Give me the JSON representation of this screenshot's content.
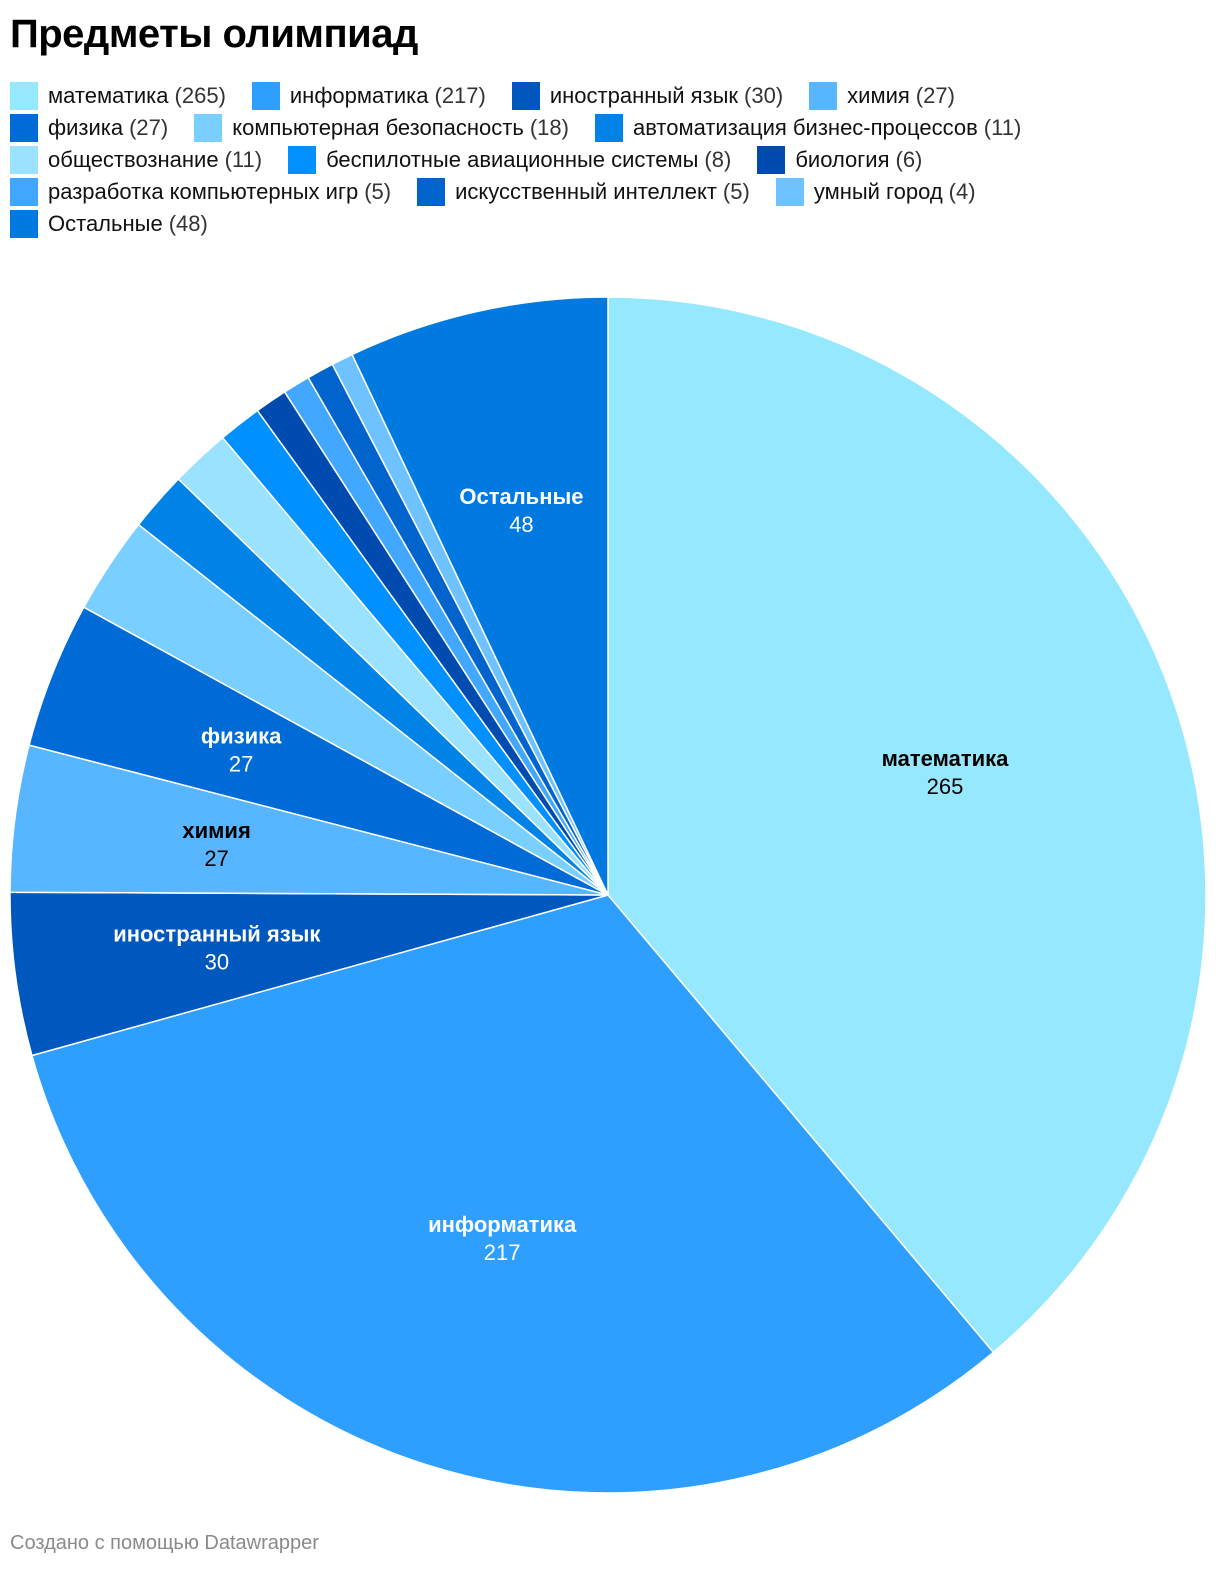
{
  "title": "Предметы олимпиад",
  "footer": "Создано с помощью Datawrapper",
  "chart_data": {
    "type": "pie",
    "title": "Предметы олимпиад",
    "legend_position": "top",
    "slices": [
      {
        "label": "математика",
        "value": 265,
        "color": "#96e8ff",
        "show_label": true,
        "label_color": "#000000"
      },
      {
        "label": "информатика",
        "value": 217,
        "color": "#2e9fff",
        "show_label": true,
        "label_color": "#ffffff"
      },
      {
        "label": "иностранный язык",
        "value": 30,
        "color": "#0057bd",
        "show_label": true,
        "label_color": "#ffffff"
      },
      {
        "label": "химия",
        "value": 27,
        "color": "#57b6ff",
        "show_label": true,
        "label_color": "#000000"
      },
      {
        "label": "физика",
        "value": 27,
        "color": "#006bd6",
        "show_label": true,
        "label_color": "#ffffff"
      },
      {
        "label": "компьютерная безопасность",
        "value": 18,
        "color": "#79cfff",
        "show_label": false,
        "label_color": "#000000"
      },
      {
        "label": "автоматизация бизнес-процессов",
        "value": 11,
        "color": "#0082e6",
        "show_label": false,
        "label_color": "#ffffff"
      },
      {
        "label": "обществознание",
        "value": 11,
        "color": "#9ae2ff",
        "show_label": false,
        "label_color": "#000000"
      },
      {
        "label": "беспилотные авиационные системы",
        "value": 8,
        "color": "#0090ff",
        "show_label": false,
        "label_color": "#ffffff"
      },
      {
        "label": "биология",
        "value": 6,
        "color": "#004bb0",
        "show_label": false,
        "label_color": "#ffffff"
      },
      {
        "label": "разработка компьютерных игр",
        "value": 5,
        "color": "#41a7ff",
        "show_label": false,
        "label_color": "#000000"
      },
      {
        "label": "искусственный интеллект",
        "value": 5,
        "color": "#0064cc",
        "show_label": false,
        "label_color": "#ffffff"
      },
      {
        "label": "умный город",
        "value": 4,
        "color": "#6dc2ff",
        "show_label": false,
        "label_color": "#000000"
      },
      {
        "label": "Остальные",
        "value": 48,
        "color": "#007ae0",
        "show_label": true,
        "label_color": "#ffffff"
      }
    ]
  }
}
